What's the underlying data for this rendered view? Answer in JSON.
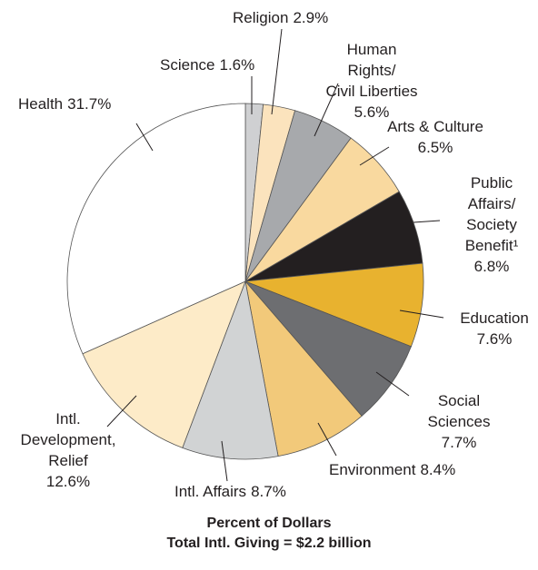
{
  "chart_data": {
    "type": "pie",
    "title": "Percent of Dollars",
    "subtitle": "Total Intl. Giving = $2.2 billion",
    "categories": [
      "Science",
      "Religion",
      "Human Rights/\nCivil Liberties",
      "Arts & Culture",
      "Public\nAffairs/\nSociety\nBenefit¹",
      "Education",
      "Social Sciences",
      "Environment",
      "Intl. Affairs",
      "Intl.\nDevelopment,\nRelief",
      "Health"
    ],
    "values": [
      1.6,
      2.9,
      5.6,
      6.5,
      6.8,
      7.6,
      7.7,
      8.4,
      8.7,
      12.6,
      31.7
    ],
    "value_labels": [
      "1.6%",
      "2.9%",
      "5.6%",
      "6.5%",
      "6.8%",
      "7.6%",
      "7.7%",
      "8.4%",
      "8.7%",
      "12.6%",
      "31.7%"
    ],
    "colors": [
      "#cfd0d2",
      "#fbe3bd",
      "#a7a9ac",
      "#f9d99f",
      "#231f20",
      "#e8b22f",
      "#6d6e71",
      "#f2c97a",
      "#d1d3d4",
      "#fdebc8",
      "#ffffff"
    ]
  }
}
